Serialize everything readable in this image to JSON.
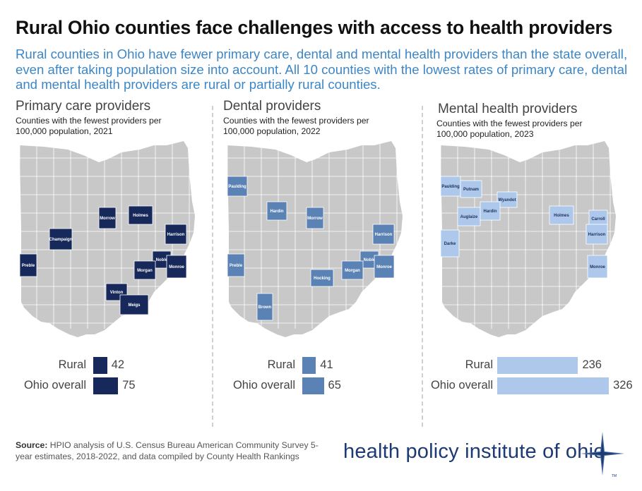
{
  "title": "Rural Ohio counties face challenges with access to health providers",
  "subtitle": "Rural counties in Ohio have fewer primary care, dental and mental health providers than the state overall, even after taking population size into account. All 10 counties with the lowest rates of primary care, dental and mental health providers are rural or partially rural counties.",
  "colors": {
    "base_county": "#c8c8c8",
    "county_border": "#ffffff",
    "primary": "#16295a",
    "dental": "#5b82b5",
    "mental": "#aec8ec",
    "subtitle": "#3d86c6"
  },
  "chart_data": [
    {
      "type": "bar",
      "title": "Primary care providers",
      "subtitle": "Counties with the fewest providers per 100,000 population, 2021",
      "categories": [
        "Rural",
        "Ohio overall"
      ],
      "values": [
        42,
        75
      ],
      "highlighted_counties": [
        "Preble",
        "Champaign",
        "Morrow",
        "Holmes",
        "Harrison",
        "Noble",
        "Morgan",
        "Monroe",
        "Vinton",
        "Meigs"
      ]
    },
    {
      "type": "bar",
      "title": "Dental providers",
      "subtitle": "Counties with the fewest providers per 100,000 population, 2022",
      "categories": [
        "Rural",
        "Ohio overall"
      ],
      "values": [
        41,
        65
      ],
      "highlighted_counties": [
        "Paulding",
        "Hardin",
        "Morrow",
        "Harrison",
        "Preble",
        "Noble",
        "Monroe",
        "Morgan",
        "Hocking",
        "Brown"
      ]
    },
    {
      "type": "bar",
      "title": "Mental health providers",
      "subtitle": "Counties with the fewest providers per 100,000 population, 2023",
      "categories": [
        "Rural",
        "Ohio overall"
      ],
      "values": [
        236,
        326
      ],
      "highlighted_counties": [
        "Paulding",
        "Putnam",
        "Wyandot",
        "Auglaize",
        "Hardin",
        "Holmes",
        "Carroll",
        "Harrison",
        "Darke",
        "Monroe"
      ]
    }
  ],
  "source": {
    "label": "Source:",
    "text": "HPIO analysis of U.S. Census Bureau American Community Survey 5-year estimates, 2018-2022, and data compiled by County Health Rankings"
  },
  "brand": {
    "name": "health policy institute of ohio",
    "tm": "TM"
  }
}
